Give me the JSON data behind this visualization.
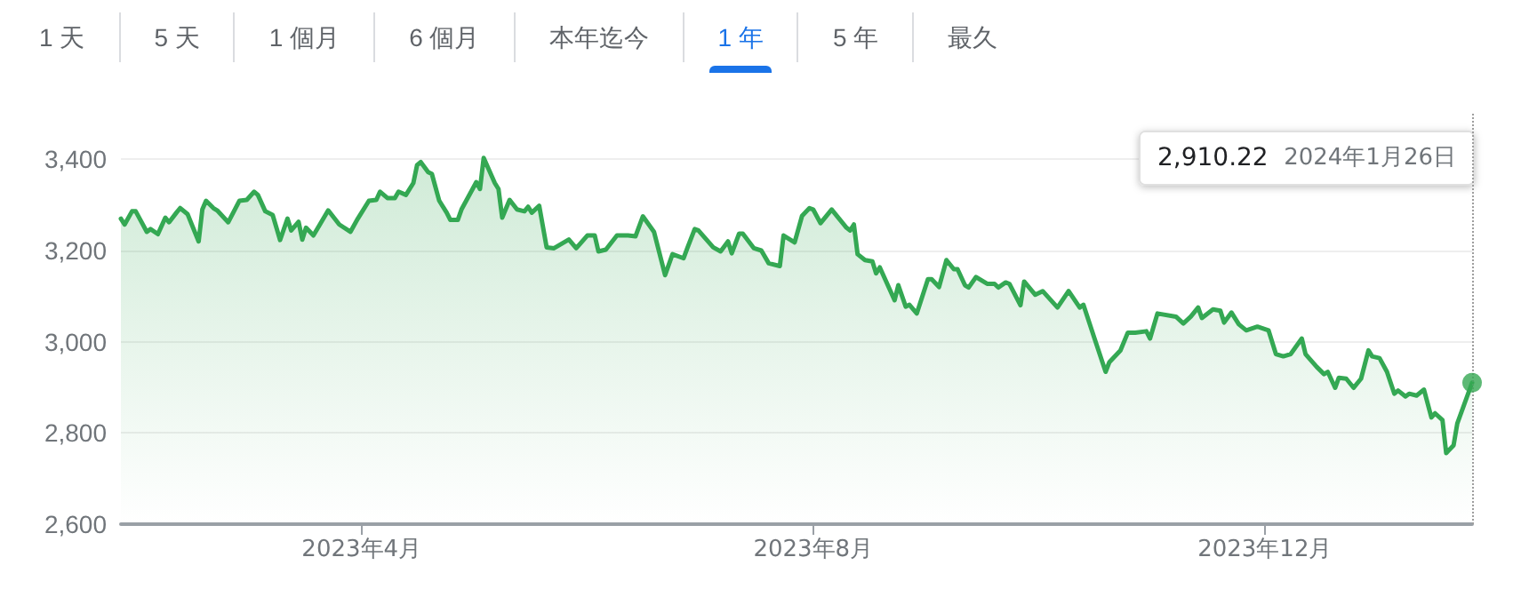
{
  "chart_data": {
    "type": "area",
    "xlim": [
      "2023-01-26",
      "2024-01-26"
    ],
    "xticks": [
      {
        "value": "2023-04-01",
        "label": "2023年4月"
      },
      {
        "value": "2023-08-01",
        "label": "2023年8月"
      },
      {
        "value": "2023-12-01",
        "label": "2023年12月"
      }
    ],
    "ylim": [
      2600,
      3500
    ],
    "yticks": [
      {
        "value": 2600,
        "label": "2,600"
      },
      {
        "value": 2800,
        "label": "2,800"
      },
      {
        "value": 3000,
        "label": "3,000"
      },
      {
        "value": 3200,
        "label": "3,200"
      },
      {
        "value": 3400,
        "label": "3,400"
      }
    ],
    "grid": "y",
    "marker": "none",
    "line_style": "solid",
    "annotations": [
      "1 天",
      "5 天",
      "1 個月",
      "6 個月",
      "本年迄今",
      "1 年",
      "5 年",
      "最久",
      "2,910.22",
      "2024年1月26日"
    ],
    "ref_lines": [
      {
        "axis": "x",
        "value": "2024-01-26",
        "line_style": "dotted",
        "color": "#9e9e9e"
      }
    ],
    "series": [
      {
        "color": "#34a853",
        "x": [
          "2023-01-26",
          "2023-01-27",
          "2023-01-29",
          "2023-01-30",
          "2023-02-02",
          "2023-02-03",
          "2023-02-05",
          "2023-02-07",
          "2023-02-08",
          "2023-02-10",
          "2023-02-11",
          "2023-02-13",
          "2023-02-16",
          "2023-02-17",
          "2023-02-18",
          "2023-02-20",
          "2023-02-21",
          "2023-02-24",
          "2023-02-27",
          "2023-03-01",
          "2023-03-03",
          "2023-03-04",
          "2023-03-06",
          "2023-03-08",
          "2023-03-10",
          "2023-03-12",
          "2023-03-13",
          "2023-03-15",
          "2023-03-16",
          "2023-03-17",
          "2023-03-19",
          "2023-03-23",
          "2023-03-26",
          "2023-03-29",
          "2023-03-31",
          "2023-04-03",
          "2023-04-05",
          "2023-04-06",
          "2023-04-08",
          "2023-04-10",
          "2023-04-11",
          "2023-04-13",
          "2023-04-15",
          "2023-04-16",
          "2023-04-17",
          "2023-04-19",
          "2023-04-20",
          "2023-04-22",
          "2023-04-24",
          "2023-04-25",
          "2023-04-27",
          "2023-04-28",
          "2023-05-01",
          "2023-05-02",
          "2023-05-03",
          "2023-05-04",
          "2023-05-07",
          "2023-05-08",
          "2023-05-09",
          "2023-05-11",
          "2023-05-13",
          "2023-05-15",
          "2023-05-16",
          "2023-05-17",
          "2023-05-19",
          "2023-05-21",
          "2023-05-23",
          "2023-05-27",
          "2023-05-29",
          "2023-06-01",
          "2023-06-03",
          "2023-06-04",
          "2023-06-06",
          "2023-06-09",
          "2023-06-12",
          "2023-06-14",
          "2023-06-16",
          "2023-06-19",
          "2023-06-22",
          "2023-06-24",
          "2023-06-27",
          "2023-06-28",
          "2023-06-30",
          "2023-07-01",
          "2023-07-05",
          "2023-07-07",
          "2023-07-09",
          "2023-07-10",
          "2023-07-12",
          "2023-07-13",
          "2023-07-16",
          "2023-07-18",
          "2023-07-20",
          "2023-07-23",
          "2023-07-24",
          "2023-07-27",
          "2023-07-29",
          "2023-07-31",
          "2023-08-01",
          "2023-08-03",
          "2023-08-06",
          "2023-08-08",
          "2023-08-10",
          "2023-08-11",
          "2023-08-12",
          "2023-08-13",
          "2023-08-15",
          "2023-08-17",
          "2023-08-18",
          "2023-08-19",
          "2023-08-23",
          "2023-08-24",
          "2023-08-26",
          "2023-08-27",
          "2023-08-29",
          "2023-09-01",
          "2023-09-02",
          "2023-09-04",
          "2023-09-06",
          "2023-09-08",
          "2023-09-09",
          "2023-09-11",
          "2023-09-12",
          "2023-09-14",
          "2023-09-17",
          "2023-09-19",
          "2023-09-20",
          "2023-09-22",
          "2023-09-23",
          "2023-09-26",
          "2023-09-27",
          "2023-09-30",
          "2023-10-02",
          "2023-10-06",
          "2023-10-09",
          "2023-10-12",
          "2023-10-13",
          "2023-10-16",
          "2023-10-19",
          "2023-10-20",
          "2023-10-23",
          "2023-10-25",
          "2023-10-27",
          "2023-10-30",
          "2023-10-31",
          "2023-11-02",
          "2023-11-07",
          "2023-11-09",
          "2023-11-11",
          "2023-11-13",
          "2023-11-14",
          "2023-11-17",
          "2023-11-19",
          "2023-11-20",
          "2023-11-22",
          "2023-11-24",
          "2023-11-26",
          "2023-11-29",
          "2023-12-02",
          "2023-12-04",
          "2023-12-06",
          "2023-12-08",
          "2023-12-11",
          "2023-12-12",
          "2023-12-15",
          "2023-12-17",
          "2023-12-18",
          "2023-12-20",
          "2023-12-21",
          "2023-12-23",
          "2023-12-25",
          "2023-12-27",
          "2023-12-29",
          "2023-12-30",
          "2024-01-01",
          "2024-01-03",
          "2024-01-05",
          "2024-01-06",
          "2024-01-08",
          "2024-01-09",
          "2024-01-11",
          "2024-01-13",
          "2024-01-15",
          "2024-01-16",
          "2024-01-18",
          "2024-01-19",
          "2024-01-21",
          "2024-01-22",
          "2024-01-26"
        ],
        "values": [
          3270,
          3257,
          3286,
          3286,
          3241,
          3247,
          3236,
          3272,
          3262,
          3283,
          3293,
          3280,
          3220,
          3290,
          3309,
          3293,
          3288,
          3262,
          3309,
          3311,
          3329,
          3322,
          3286,
          3278,
          3223,
          3270,
          3244,
          3263,
          3224,
          3250,
          3233,
          3288,
          3257,
          3241,
          3270,
          3309,
          3311,
          3329,
          3315,
          3315,
          3329,
          3322,
          3348,
          3387,
          3394,
          3372,
          3368,
          3309,
          3283,
          3267,
          3267,
          3290,
          3335,
          3350,
          3335,
          3403,
          3348,
          3335,
          3272,
          3311,
          3290,
          3286,
          3296,
          3283,
          3298,
          3207,
          3205,
          3224,
          3205,
          3233,
          3233,
          3198,
          3202,
          3233,
          3233,
          3231,
          3275,
          3241,
          3146,
          3192,
          3183,
          3205,
          3247,
          3244,
          3207,
          3198,
          3220,
          3194,
          3237,
          3237,
          3205,
          3200,
          3172,
          3166,
          3233,
          3218,
          3276,
          3293,
          3290,
          3260,
          3290,
          3270,
          3250,
          3244,
          3257,
          3192,
          3179,
          3176,
          3150,
          3163,
          3091,
          3124,
          3077,
          3081,
          3062,
          3137,
          3137,
          3120,
          3179,
          3159,
          3159,
          3124,
          3119,
          3142,
          3127,
          3127,
          3119,
          3130,
          3127,
          3080,
          3132,
          3103,
          3111,
          3075,
          3111,
          3075,
          3081,
          3007,
          2934,
          2955,
          2981,
          3020,
          3020,
          3023,
          3007,
          3062,
          3055,
          3040,
          3055,
          3075,
          3052,
          3071,
          3068,
          3042,
          3064,
          3038,
          3025,
          3033,
          3025,
          2973,
          2968,
          2973,
          3007,
          2973,
          2945,
          2929,
          2934,
          2899,
          2921,
          2919,
          2899,
          2919,
          2981,
          2968,
          2964,
          2934,
          2886,
          2893,
          2880,
          2886,
          2882,
          2895,
          2834,
          2843,
          2828,
          2756,
          2773,
          2821,
          2910.22
        ]
      },
      {
        "type": "scatter",
        "marker": "circle",
        "color": "#34a853",
        "x": [
          "2024-01-26"
        ],
        "values": [
          2910.22
        ]
      }
    ]
  }
}
